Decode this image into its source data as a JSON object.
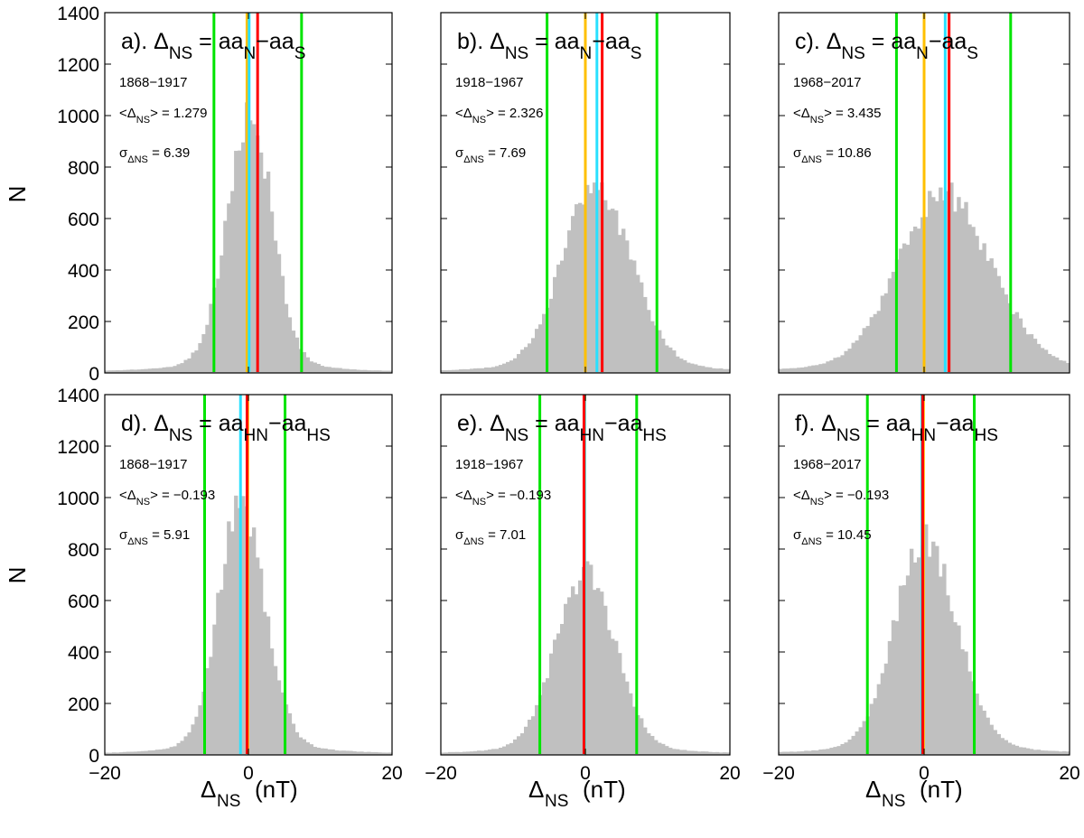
{
  "figure": {
    "y_axis_title": "N",
    "x_axis_title_main": "Δ",
    "x_axis_title_sub": "NS",
    "x_axis_title_unit": "(nT)"
  },
  "chart_data": [
    {
      "type": "bar",
      "panel": "a",
      "title": {
        "prefix": "a). Δ",
        "sub1": "NS",
        "mid": " = aa",
        "sub2": "N",
        "mid2": "−aa",
        "sub3": "S"
      },
      "period": "1868−1917",
      "mean": {
        "prefix": "<Δ",
        "sub": "NS",
        "suffix": "> = 1.279"
      },
      "sigma": {
        "prefix": "σ",
        "sub": "ΔNS",
        "suffix": " = 6.39"
      },
      "xlim": [
        -20,
        20
      ],
      "ylim": [
        0,
        1400
      ],
      "bin_width": 0.5,
      "xticks": [
        "−20",
        "0",
        "20"
      ],
      "yticks": [
        "0",
        "200",
        "400",
        "600",
        "800",
        "1000",
        "1200",
        "1400"
      ],
      "y_tick_labels_shown": true,
      "x_tick_labels_shown": false,
      "histogram_color": "#c0c0c0",
      "shape": {
        "mode": 0.3,
        "peak": 1000,
        "width_left": 3.2,
        "width_right": 3.0,
        "tail": 0.08
      },
      "vlines": [
        {
          "color": "#00e400",
          "x": -4.8
        },
        {
          "color": "#ffc000",
          "x": -0.2
        },
        {
          "color": "#29e0ff",
          "x": 0.1
        },
        {
          "color": "#ff0000",
          "x": 1.279
        },
        {
          "color": "#00e400",
          "x": 7.4
        }
      ]
    },
    {
      "type": "bar",
      "panel": "b",
      "title": {
        "prefix": "b). Δ",
        "sub1": "NS",
        "mid": " = aa",
        "sub2": "N",
        "mid2": "−aa",
        "sub3": "S"
      },
      "period": "1918−1967",
      "mean": {
        "prefix": "<Δ",
        "sub": "NS",
        "suffix": "> = 2.326"
      },
      "sigma": {
        "prefix": "σ",
        "sub": "ΔNS",
        "suffix": " = 7.69"
      },
      "xlim": [
        -20,
        20
      ],
      "ylim": [
        0,
        1400
      ],
      "bin_width": 0.5,
      "xticks": [
        "−20",
        "0",
        "20"
      ],
      "yticks": [
        "0",
        "200",
        "400",
        "600",
        "800",
        "1000",
        "1200",
        "1400"
      ],
      "y_tick_labels_shown": false,
      "x_tick_labels_shown": false,
      "histogram_color": "#c0c0c0",
      "shape": {
        "mode": 1.5,
        "peak": 720,
        "width_left": 4.6,
        "width_right": 4.8,
        "tail": 0.08
      },
      "vlines": [
        {
          "color": "#00e400",
          "x": -5.3
        },
        {
          "color": "#ffc000",
          "x": 0.0
        },
        {
          "color": "#29e0ff",
          "x": 1.6
        },
        {
          "color": "#ff0000",
          "x": 2.326
        },
        {
          "color": "#00e400",
          "x": 9.9
        }
      ]
    },
    {
      "type": "bar",
      "panel": "c",
      "title": {
        "prefix": "c). Δ",
        "sub1": "NS",
        "mid": " = aa",
        "sub2": "N",
        "mid2": "−aa",
        "sub3": "S"
      },
      "period": "1968−2017",
      "mean": {
        "prefix": "<Δ",
        "sub": "NS",
        "suffix": "> = 3.435"
      },
      "sigma": {
        "prefix": "σ",
        "sub": "ΔNS",
        "suffix": " = 10.86"
      },
      "xlim": [
        -20,
        20
      ],
      "ylim": [
        0,
        1400
      ],
      "bin_width": 0.5,
      "xticks": [
        "−20",
        "0",
        "20"
      ],
      "yticks": [
        "0",
        "200",
        "400",
        "600",
        "800",
        "1000",
        "1200",
        "1400"
      ],
      "y_tick_labels_shown": false,
      "x_tick_labels_shown": false,
      "histogram_color": "#c0c0c0",
      "shape": {
        "mode": 2.5,
        "peak": 700,
        "width_left": 6.0,
        "width_right": 6.5,
        "tail": 0.08
      },
      "vlines": [
        {
          "color": "#00e400",
          "x": -3.8
        },
        {
          "color": "#ffc000",
          "x": 0.0
        },
        {
          "color": "#29e0ff",
          "x": 2.9
        },
        {
          "color": "#ff0000",
          "x": 3.435
        },
        {
          "color": "#00e400",
          "x": 11.9
        }
      ]
    },
    {
      "type": "bar",
      "panel": "d",
      "title": {
        "prefix": "d). Δ",
        "sub1": "NS",
        "mid": " = aa",
        "sub2": "HN",
        "mid2": "−aa",
        "sub3": "HS"
      },
      "period": "1868−1917",
      "mean": {
        "prefix": "<Δ",
        "sub": "NS",
        "suffix": "> = −0.193"
      },
      "sigma": {
        "prefix": "σ",
        "sub": "ΔNS",
        "suffix": " = 5.91"
      },
      "xlim": [
        -20,
        20
      ],
      "ylim": [
        0,
        1400
      ],
      "bin_width": 0.5,
      "xticks": [
        "−20",
        "0",
        "20"
      ],
      "yticks": [
        "0",
        "200",
        "400",
        "600",
        "800",
        "1000",
        "1200",
        "1400"
      ],
      "y_tick_labels_shown": true,
      "x_tick_labels_shown": true,
      "histogram_color": "#c0c0c0",
      "shape": {
        "mode": -1.2,
        "peak": 960,
        "width_left": 3.0,
        "width_right": 3.4,
        "tail": 0.08
      },
      "vlines": [
        {
          "color": "#00e400",
          "x": -6.1
        },
        {
          "color": "#ffc000",
          "x": 0.0
        },
        {
          "color": "#29e0ff",
          "x": -1.1
        },
        {
          "color": "#ff0000",
          "x": -0.193
        },
        {
          "color": "#00e400",
          "x": 5.1
        }
      ]
    },
    {
      "type": "bar",
      "panel": "e",
      "title": {
        "prefix": "e). Δ",
        "sub1": "NS",
        "mid": " = aa",
        "sub2": "HN",
        "mid2": "−aa",
        "sub3": "HS"
      },
      "period": "1918−1967",
      "mean": {
        "prefix": "<Δ",
        "sub": "NS",
        "suffix": "> = −0.193"
      },
      "sigma": {
        "prefix": "σ",
        "sub": "ΔNS",
        "suffix": " = 7.01"
      },
      "xlim": [
        -20,
        20
      ],
      "ylim": [
        0,
        1400
      ],
      "bin_width": 0.5,
      "xticks": [
        "−20",
        "0",
        "20"
      ],
      "yticks": [
        "0",
        "200",
        "400",
        "600",
        "800",
        "1000",
        "1200",
        "1400"
      ],
      "y_tick_labels_shown": false,
      "x_tick_labels_shown": true,
      "histogram_color": "#c0c0c0",
      "shape": {
        "mode": 0.0,
        "peak": 710,
        "width_left": 4.0,
        "width_right": 4.0,
        "tail": 0.08
      },
      "vlines": [
        {
          "color": "#00e400",
          "x": -6.3
        },
        {
          "color": "#ffc000",
          "x": 0.0
        },
        {
          "color": "#29e0ff",
          "x": -0.1
        },
        {
          "color": "#ff0000",
          "x": -0.193
        },
        {
          "color": "#00e400",
          "x": 7.1
        }
      ]
    },
    {
      "type": "bar",
      "panel": "f",
      "title": {
        "prefix": "f). Δ",
        "sub1": "NS",
        "mid": " = aa",
        "sub2": "HN",
        "mid2": "−aa",
        "sub3": "HS"
      },
      "period": "1968−2017",
      "mean": {
        "prefix": "<Δ",
        "sub": "NS",
        "suffix": "> = −0.193"
      },
      "sigma": {
        "prefix": "σ",
        "sub": "ΔNS",
        "suffix": " = 10.45"
      },
      "xlim": [
        -20,
        20
      ],
      "ylim": [
        0,
        1400
      ],
      "bin_width": 0.5,
      "xticks": [
        "−20",
        "0",
        "20"
      ],
      "yticks": [
        "0",
        "200",
        "400",
        "600",
        "800",
        "1000",
        "1200",
        "1400"
      ],
      "y_tick_labels_shown": false,
      "x_tick_labels_shown": true,
      "histogram_color": "#c0c0c0",
      "shape": {
        "mode": 0.0,
        "peak": 840,
        "width_left": 4.0,
        "width_right": 4.4,
        "tail": 0.08
      },
      "vlines": [
        {
          "color": "#00e400",
          "x": -7.8
        },
        {
          "color": "#ffc000",
          "x": 0.0
        },
        {
          "color": "#29e0ff",
          "x": -0.3
        },
        {
          "color": "#ff0000",
          "x": -0.193
        },
        {
          "color": "#00e400",
          "x": 6.9
        }
      ]
    }
  ]
}
